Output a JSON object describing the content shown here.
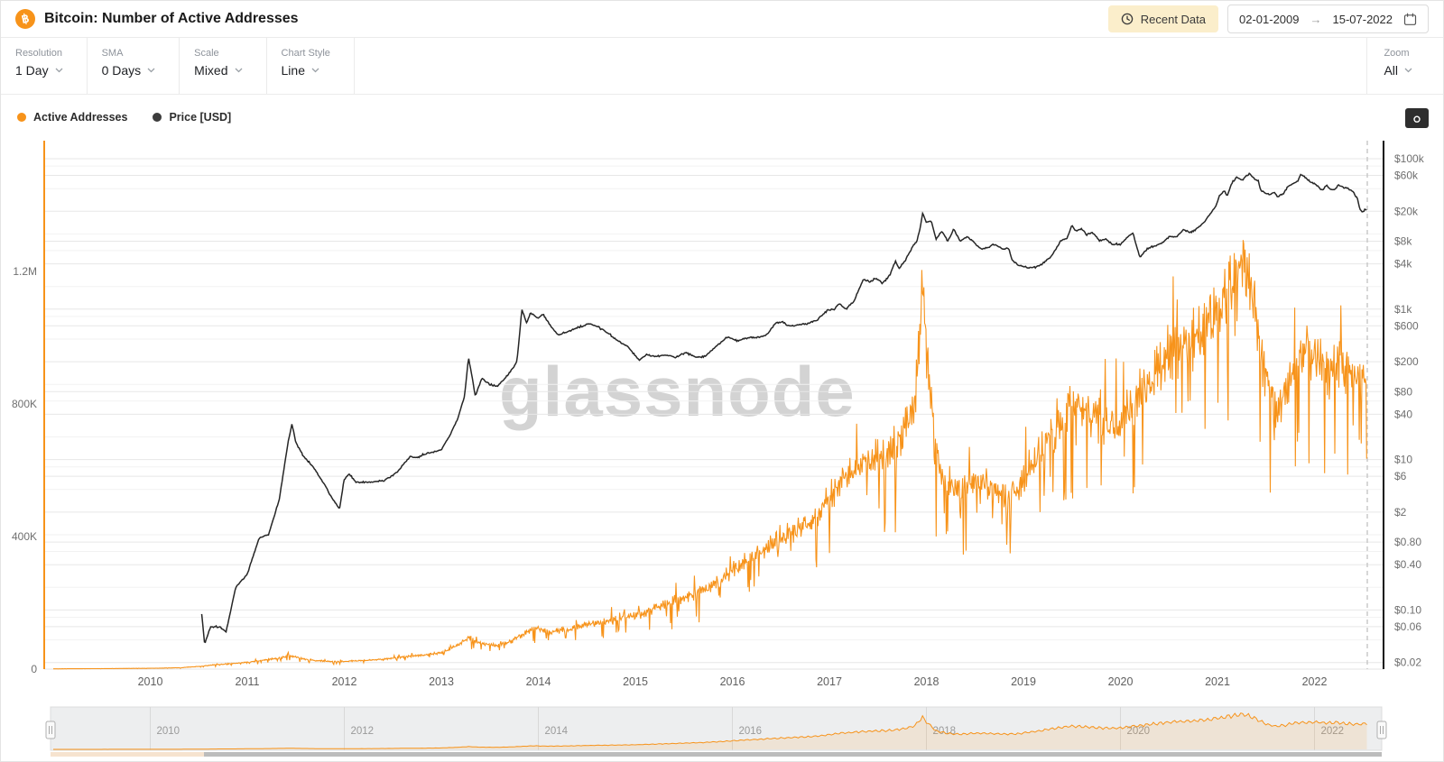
{
  "header": {
    "title": "Bitcoin: Number of Active Addresses",
    "recent_data_label": "Recent Data",
    "date_from": "02-01-2009",
    "date_arrow": "→",
    "date_to": "15-07-2022"
  },
  "toolbar": {
    "controls": [
      {
        "label": "Resolution",
        "value": "1 Day"
      },
      {
        "label": "SMA",
        "value": "0 Days"
      },
      {
        "label": "Scale",
        "value": "Mixed"
      },
      {
        "label": "Chart Style",
        "value": "Line"
      }
    ],
    "zoom": {
      "label": "Zoom",
      "value": "All"
    }
  },
  "legend": [
    {
      "label": "Active Addresses",
      "color": "#f7931a"
    },
    {
      "label": "Price [USD]",
      "color": "#3d3d3d"
    }
  ],
  "watermark": "glassnode",
  "colors": {
    "active_addresses": "#f7931a",
    "price": "#262626",
    "grid_major": "#e7e7e7",
    "grid_minor": "#f2f2f2",
    "axis_text": "#6f6f6f",
    "dashed_marker": "#c6c6c6"
  },
  "chart_data": {
    "type": "line",
    "title": "Bitcoin: Number of Active Addresses",
    "x_axis": {
      "years": [
        2010,
        2011,
        2012,
        2013,
        2014,
        2015,
        2016,
        2017,
        2018,
        2019,
        2020,
        2021,
        2022
      ],
      "labels": [
        "2010",
        "2011",
        "2012",
        "2013",
        "2014",
        "2015",
        "2016",
        "2017",
        "2018",
        "2019",
        "2020",
        "2021",
        "2022"
      ],
      "range_years": [
        2009.0,
        2022.58
      ]
    },
    "left_axis": {
      "title": "Active Addresses",
      "scale": "linear",
      "ticks": [
        "0",
        "400K",
        "800K",
        "1.2M"
      ],
      "tick_values": [
        0,
        400000,
        800000,
        1200000
      ],
      "max": 1600000
    },
    "right_axis": {
      "title": "Price [USD]",
      "scale": "log",
      "ticks": [
        "$100k",
        "$60k",
        "$20k",
        "$8k",
        "$4k",
        "$1k",
        "$600",
        "$200",
        "$80",
        "$40",
        "$10",
        "$6",
        "$2",
        "$0.80",
        "$0.40",
        "$0.10",
        "$0.06",
        "$0.02"
      ],
      "tick_values": [
        100000,
        60000,
        20000,
        8000,
        4000,
        1000,
        600,
        200,
        80,
        40,
        10,
        6,
        2,
        0.8,
        0.4,
        0.1,
        0.06,
        0.02
      ],
      "grid_values": [
        100000,
        80000,
        60000,
        40000,
        20000,
        10000,
        8000,
        6000,
        4000,
        2000,
        1000,
        800,
        600,
        400,
        200,
        100,
        80,
        60,
        40,
        20,
        10,
        8,
        6,
        4,
        2,
        1,
        0.8,
        0.6,
        0.4,
        0.2,
        0.1,
        0.08,
        0.06,
        0.04,
        0.02
      ]
    },
    "series": [
      {
        "name": "Active Addresses",
        "axis": "left",
        "color": "#f7931a",
        "points": [
          [
            2009.0,
            800
          ],
          [
            2009.5,
            1500
          ],
          [
            2010.0,
            2500
          ],
          [
            2010.3,
            4000
          ],
          [
            2010.5,
            8000
          ],
          [
            2010.7,
            14000
          ],
          [
            2010.9,
            18000
          ],
          [
            2011.1,
            24000
          ],
          [
            2011.3,
            32000
          ],
          [
            2011.45,
            40000
          ],
          [
            2011.55,
            33000
          ],
          [
            2011.7,
            26000
          ],
          [
            2011.85,
            23000
          ],
          [
            2012.0,
            23000
          ],
          [
            2012.2,
            26000
          ],
          [
            2012.4,
            30000
          ],
          [
            2012.6,
            37000
          ],
          [
            2012.8,
            42000
          ],
          [
            2013.0,
            50000
          ],
          [
            2013.15,
            70000
          ],
          [
            2013.28,
            95000
          ],
          [
            2013.4,
            78000
          ],
          [
            2013.55,
            72000
          ],
          [
            2013.7,
            82000
          ],
          [
            2013.85,
            105000
          ],
          [
            2013.95,
            125000
          ],
          [
            2014.1,
            112000
          ],
          [
            2014.3,
            120000
          ],
          [
            2014.5,
            135000
          ],
          [
            2014.7,
            145000
          ],
          [
            2014.9,
            155000
          ],
          [
            2015.1,
            170000
          ],
          [
            2015.3,
            195000
          ],
          [
            2015.5,
            215000
          ],
          [
            2015.7,
            240000
          ],
          [
            2015.9,
            275000
          ],
          [
            2016.1,
            320000
          ],
          [
            2016.3,
            355000
          ],
          [
            2016.5,
            395000
          ],
          [
            2016.7,
            425000
          ],
          [
            2016.9,
            465000
          ],
          [
            2017.1,
            555000
          ],
          [
            2017.3,
            610000
          ],
          [
            2017.45,
            640000
          ],
          [
            2017.6,
            660000
          ],
          [
            2017.75,
            700000
          ],
          [
            2017.88,
            820000
          ],
          [
            2017.96,
            1120000
          ],
          [
            2018.02,
            900000
          ],
          [
            2018.1,
            650000
          ],
          [
            2018.2,
            560000
          ],
          [
            2018.35,
            530000
          ],
          [
            2018.5,
            570000
          ],
          [
            2018.65,
            545000
          ],
          [
            2018.8,
            530000
          ],
          [
            2018.95,
            545000
          ],
          [
            2019.1,
            620000
          ],
          [
            2019.25,
            690000
          ],
          [
            2019.4,
            760000
          ],
          [
            2019.5,
            810000
          ],
          [
            2019.65,
            775000
          ],
          [
            2019.8,
            745000
          ],
          [
            2019.95,
            730000
          ],
          [
            2020.1,
            790000
          ],
          [
            2020.25,
            850000
          ],
          [
            2020.4,
            910000
          ],
          [
            2020.55,
            960000
          ],
          [
            2020.7,
            990000
          ],
          [
            2020.85,
            1010000
          ],
          [
            2021.0,
            1090000
          ],
          [
            2021.1,
            1140000
          ],
          [
            2021.2,
            1180000
          ],
          [
            2021.28,
            1230000
          ],
          [
            2021.38,
            1090000
          ],
          [
            2021.5,
            880000
          ],
          [
            2021.6,
            800000
          ],
          [
            2021.72,
            860000
          ],
          [
            2021.85,
            940000
          ],
          [
            2022.0,
            950000
          ],
          [
            2022.12,
            910000
          ],
          [
            2022.25,
            930000
          ],
          [
            2022.38,
            890000
          ],
          [
            2022.48,
            870000
          ],
          [
            2022.54,
            905000
          ]
        ]
      },
      {
        "name": "Price [USD]",
        "axis": "right",
        "color": "#262626",
        "points": [
          [
            2010.53,
            0.09
          ],
          [
            2010.56,
            0.035
          ],
          [
            2010.62,
            0.06
          ],
          [
            2010.72,
            0.06
          ],
          [
            2010.78,
            0.05
          ],
          [
            2010.88,
            0.2
          ],
          [
            2011.0,
            0.3
          ],
          [
            2011.12,
            0.9
          ],
          [
            2011.22,
            1.0
          ],
          [
            2011.33,
            3
          ],
          [
            2011.42,
            17
          ],
          [
            2011.46,
            30
          ],
          [
            2011.5,
            17
          ],
          [
            2011.58,
            11
          ],
          [
            2011.68,
            8
          ],
          [
            2011.78,
            5
          ],
          [
            2011.88,
            3
          ],
          [
            2011.95,
            2.2
          ],
          [
            2012.0,
            5.5
          ],
          [
            2012.05,
            6.5
          ],
          [
            2012.12,
            5
          ],
          [
            2012.25,
            5
          ],
          [
            2012.4,
            5.2
          ],
          [
            2012.55,
            6.8
          ],
          [
            2012.62,
            9
          ],
          [
            2012.68,
            11
          ],
          [
            2012.75,
            10.5
          ],
          [
            2012.85,
            12
          ],
          [
            2013.0,
            13.5
          ],
          [
            2013.08,
            20
          ],
          [
            2013.17,
            35
          ],
          [
            2013.24,
            70
          ],
          [
            2013.28,
            230
          ],
          [
            2013.32,
            120
          ],
          [
            2013.35,
            70
          ],
          [
            2013.42,
            120
          ],
          [
            2013.5,
            100
          ],
          [
            2013.58,
            95
          ],
          [
            2013.68,
            130
          ],
          [
            2013.78,
            200
          ],
          [
            2013.83,
            1000
          ],
          [
            2013.88,
            650
          ],
          [
            2013.92,
            900
          ],
          [
            2014.0,
            750
          ],
          [
            2014.05,
            850
          ],
          [
            2014.12,
            620
          ],
          [
            2014.2,
            450
          ],
          [
            2014.3,
            500
          ],
          [
            2014.42,
            580
          ],
          [
            2014.52,
            640
          ],
          [
            2014.62,
            580
          ],
          [
            2014.72,
            480
          ],
          [
            2014.82,
            380
          ],
          [
            2014.92,
            320
          ],
          [
            2015.04,
            210
          ],
          [
            2015.12,
            250
          ],
          [
            2015.2,
            235
          ],
          [
            2015.3,
            245
          ],
          [
            2015.42,
            230
          ],
          [
            2015.52,
            265
          ],
          [
            2015.62,
            230
          ],
          [
            2015.72,
            235
          ],
          [
            2015.82,
            310
          ],
          [
            2015.88,
            360
          ],
          [
            2015.95,
            430
          ],
          [
            2016.05,
            380
          ],
          [
            2016.15,
            415
          ],
          [
            2016.25,
            420
          ],
          [
            2016.35,
            450
          ],
          [
            2016.45,
            660
          ],
          [
            2016.52,
            670
          ],
          [
            2016.58,
            600
          ],
          [
            2016.68,
            615
          ],
          [
            2016.78,
            640
          ],
          [
            2016.88,
            730
          ],
          [
            2016.98,
            960
          ],
          [
            2017.05,
            1000
          ],
          [
            2017.1,
            1180
          ],
          [
            2017.17,
            1000
          ],
          [
            2017.25,
            1250
          ],
          [
            2017.35,
            2500
          ],
          [
            2017.42,
            2300
          ],
          [
            2017.48,
            2600
          ],
          [
            2017.55,
            2200
          ],
          [
            2017.62,
            2800
          ],
          [
            2017.68,
            4300
          ],
          [
            2017.72,
            3500
          ],
          [
            2017.78,
            4400
          ],
          [
            2017.85,
            6500
          ],
          [
            2017.9,
            8000
          ],
          [
            2017.93,
            11000
          ],
          [
            2017.96,
            19000
          ],
          [
            2018.0,
            14500
          ],
          [
            2018.05,
            15000
          ],
          [
            2018.1,
            8500
          ],
          [
            2018.16,
            11000
          ],
          [
            2018.22,
            8000
          ],
          [
            2018.28,
            11500
          ],
          [
            2018.35,
            8000
          ],
          [
            2018.42,
            9300
          ],
          [
            2018.5,
            7500
          ],
          [
            2018.56,
            6300
          ],
          [
            2018.62,
            6500
          ],
          [
            2018.7,
            7300
          ],
          [
            2018.78,
            6400
          ],
          [
            2018.85,
            6400
          ],
          [
            2018.88,
            4500
          ],
          [
            2018.95,
            3800
          ],
          [
            2019.0,
            3700
          ],
          [
            2019.06,
            3500
          ],
          [
            2019.12,
            3600
          ],
          [
            2019.2,
            4000
          ],
          [
            2019.3,
            5300
          ],
          [
            2019.38,
            8000
          ],
          [
            2019.45,
            8800
          ],
          [
            2019.5,
            12900
          ],
          [
            2019.55,
            10800
          ],
          [
            2019.6,
            11800
          ],
          [
            2019.65,
            9800
          ],
          [
            2019.72,
            10300
          ],
          [
            2019.78,
            8200
          ],
          [
            2019.85,
            8500
          ],
          [
            2019.92,
            7300
          ],
          [
            2020.0,
            7200
          ],
          [
            2020.08,
            9400
          ],
          [
            2020.13,
            10200
          ],
          [
            2020.2,
            4900
          ],
          [
            2020.28,
            6400
          ],
          [
            2020.35,
            6900
          ],
          [
            2020.42,
            7500
          ],
          [
            2020.5,
            9100
          ],
          [
            2020.58,
            9200
          ],
          [
            2020.65,
            11500
          ],
          [
            2020.72,
            10500
          ],
          [
            2020.78,
            11500
          ],
          [
            2020.85,
            13800
          ],
          [
            2020.92,
            18000
          ],
          [
            2020.98,
            23000
          ],
          [
            2021.02,
            32000
          ],
          [
            2021.07,
            38000
          ],
          [
            2021.1,
            32000
          ],
          [
            2021.15,
            48000
          ],
          [
            2021.2,
            57000
          ],
          [
            2021.25,
            52000
          ],
          [
            2021.3,
            59000
          ],
          [
            2021.33,
            63000
          ],
          [
            2021.38,
            55000
          ],
          [
            2021.42,
            50000
          ],
          [
            2021.45,
            37000
          ],
          [
            2021.5,
            35000
          ],
          [
            2021.55,
            33000
          ],
          [
            2021.58,
            36000
          ],
          [
            2021.62,
            31500
          ],
          [
            2021.68,
            34000
          ],
          [
            2021.72,
            42000
          ],
          [
            2021.78,
            47000
          ],
          [
            2021.82,
            49000
          ],
          [
            2021.86,
            62000
          ],
          [
            2021.9,
            57000
          ],
          [
            2021.95,
            50000
          ],
          [
            2022.0,
            47000
          ],
          [
            2022.04,
            42000
          ],
          [
            2022.08,
            38000
          ],
          [
            2022.12,
            44000
          ],
          [
            2022.16,
            40000
          ],
          [
            2022.2,
            38500
          ],
          [
            2022.25,
            45000
          ],
          [
            2022.3,
            42000
          ],
          [
            2022.35,
            39500
          ],
          [
            2022.4,
            36000
          ],
          [
            2022.44,
            30000
          ],
          [
            2022.47,
            21000
          ],
          [
            2022.5,
            19500
          ],
          [
            2022.52,
            21500
          ],
          [
            2022.54,
            21000
          ]
        ]
      }
    ],
    "navigator": {
      "label_years": [
        2010,
        2012,
        2014,
        2016,
        2018,
        2020,
        2022
      ],
      "labels": [
        "2010",
        "2012",
        "2014",
        "2016",
        "2018",
        "2020",
        "2022"
      ]
    },
    "legend_position": "top-left",
    "grid": true
  }
}
